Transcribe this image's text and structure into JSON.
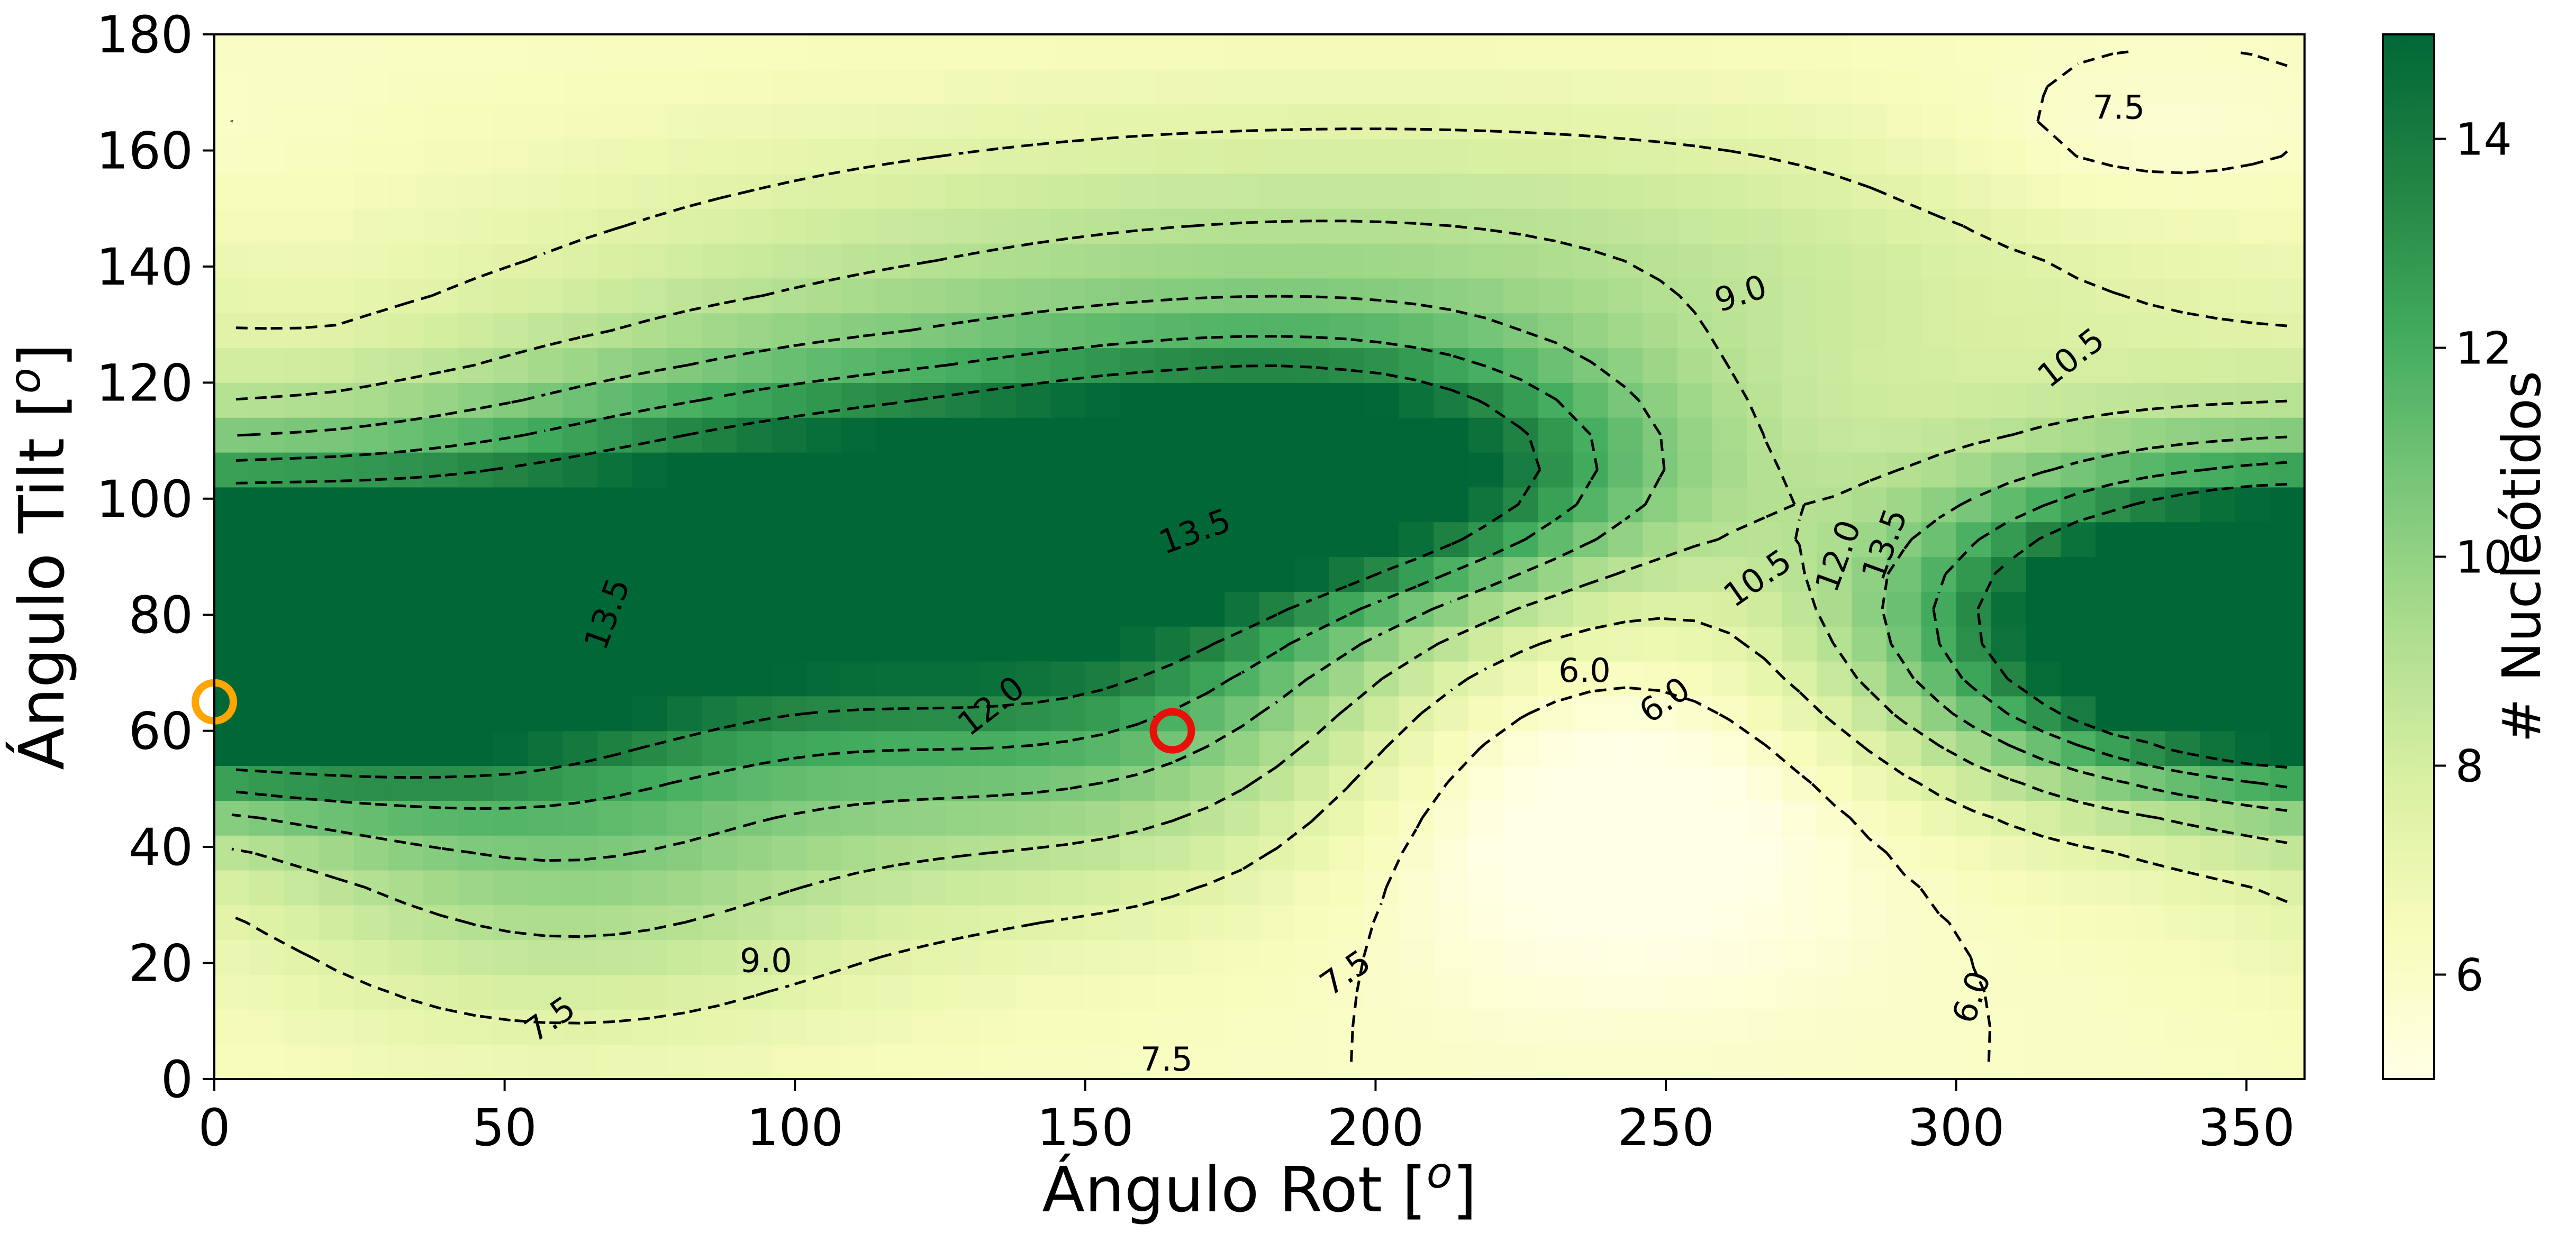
{
  "chart_data": {
    "type": "heatmap",
    "title": "",
    "xlabel": "Ángulo Rot [°]",
    "ylabel": "Ángulo Tilt [°]",
    "xlabel_parts": {
      "main": "Ángulo Rot [",
      "sup": "o",
      "end": "]"
    },
    "ylabel_parts": {
      "main": "Ángulo Tilt [",
      "sup": "o",
      "end": "]"
    },
    "xlim": [
      0,
      360
    ],
    "ylim": [
      0,
      180
    ],
    "xticks": [
      0,
      50,
      100,
      150,
      200,
      250,
      300,
      350
    ],
    "yticks": [
      0,
      20,
      40,
      60,
      80,
      100,
      120,
      140,
      160,
      180
    ],
    "grid": false,
    "colorbar": {
      "label": "# Nucleótidos",
      "range": [
        5,
        15
      ],
      "ticks": [
        6,
        8,
        10,
        12,
        14
      ],
      "colormap": [
        "#ffffe5",
        "#f7fcb9",
        "#d9f0a3",
        "#addd8e",
        "#78c679",
        "#41ab5d",
        "#238443",
        "#006837"
      ]
    },
    "contour_levels": [
      6.0,
      7.5,
      9.0,
      10.5,
      12.0,
      13.5
    ],
    "contour_labels": [
      {
        "text": "7.5",
        "x": 328,
        "y": 167,
        "angle": 0
      },
      {
        "text": "9.0",
        "x": 263,
        "y": 135,
        "angle": -18
      },
      {
        "text": "10.5",
        "x": 320,
        "y": 124,
        "angle": -38
      },
      {
        "text": "13.5",
        "x": 169,
        "y": 94,
        "angle": -20
      },
      {
        "text": "13.5",
        "x": 68,
        "y": 80,
        "angle": -70
      },
      {
        "text": "12.0",
        "x": 134,
        "y": 64,
        "angle": -38
      },
      {
        "text": "10.5",
        "x": 266,
        "y": 86,
        "angle": -35
      },
      {
        "text": "12.0",
        "x": 280,
        "y": 90,
        "angle": -70
      },
      {
        "text": "13.5",
        "x": 288,
        "y": 92,
        "angle": -70
      },
      {
        "text": "6.0",
        "x": 236,
        "y": 70,
        "angle": 0
      },
      {
        "text": "6.0",
        "x": 250,
        "y": 65,
        "angle": -35
      },
      {
        "text": "9.0",
        "x": 95,
        "y": 20,
        "angle": 0
      },
      {
        "text": "7.5",
        "x": 58,
        "y": 10,
        "angle": -35
      },
      {
        "text": "7.5",
        "x": 195,
        "y": 18,
        "angle": -35
      },
      {
        "text": "6.0",
        "x": 303,
        "y": 14,
        "angle": -70
      },
      {
        "text": "7.5",
        "x": 164,
        "y": 3,
        "angle": 0
      }
    ],
    "markers": [
      {
        "name": "marker-orange",
        "x": 0,
        "y": 65,
        "color": "#ffa500"
      },
      {
        "name": "marker-red",
        "x": 165,
        "y": 60,
        "color": "#e8100b"
      }
    ],
    "field": {
      "nx": 60,
      "ny": 30,
      "base": 6.0,
      "bumps": [
        {
          "x": 100,
          "y": 95,
          "sx": 55,
          "sy": 20,
          "a": 9.0
        },
        {
          "x": 195,
          "y": 105,
          "sx": 40,
          "sy": 15,
          "a": 8.5
        },
        {
          "x": 20,
          "y": 75,
          "sx": 40,
          "sy": 15,
          "a": 9.0
        },
        {
          "x": 340,
          "y": 80,
          "sx": 40,
          "sy": 20,
          "a": 9.0
        },
        {
          "x": 150,
          "y": 70,
          "sx": 40,
          "sy": 25,
          "a": 5.0
        },
        {
          "x": 60,
          "y": 45,
          "sx": 40,
          "sy": 25,
          "a": 4.0
        },
        {
          "x": 240,
          "y": 45,
          "sx": 30,
          "sy": 20,
          "a": -2.0
        },
        {
          "x": 200,
          "y": 140,
          "sx": 100,
          "sy": 20,
          "a": 3.0
        },
        {
          "x": 330,
          "y": 160,
          "sx": 25,
          "sy": 10,
          "a": -1.0
        }
      ]
    }
  }
}
